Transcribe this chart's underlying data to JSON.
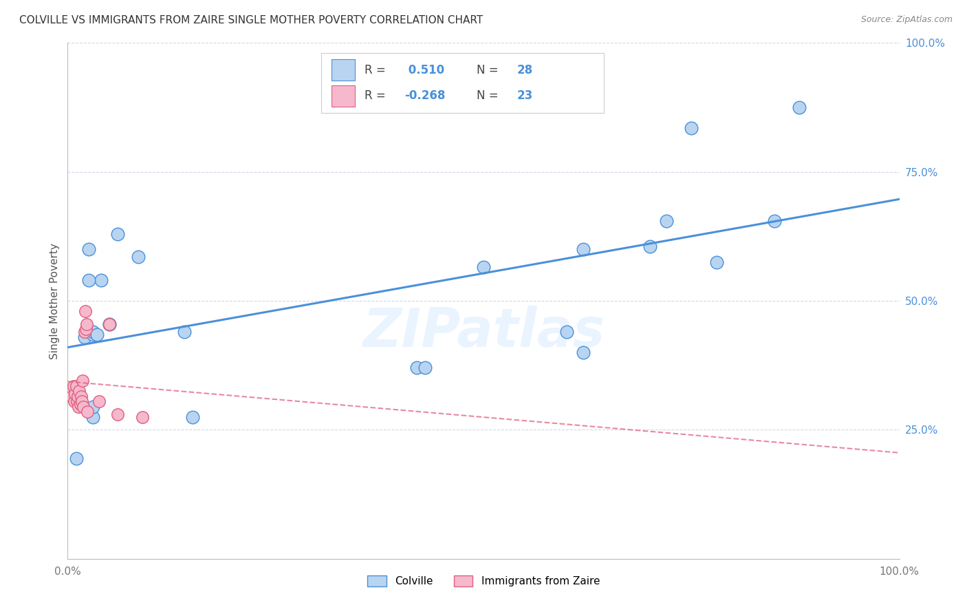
{
  "title": "COLVILLE VS IMMIGRANTS FROM ZAIRE SINGLE MOTHER POVERTY CORRELATION CHART",
  "source": "Source: ZipAtlas.com",
  "ylabel": "Single Mother Poverty",
  "xlim": [
    0,
    1.0
  ],
  "ylim": [
    0,
    1.0
  ],
  "legend_label1": "Colville",
  "legend_label2": "Immigrants from Zaire",
  "R1": 0.51,
  "N1": 28,
  "R2": -0.268,
  "N2": 23,
  "color_blue": "#b8d4f0",
  "color_blue_line": "#4a90d9",
  "color_pink": "#f5b8cc",
  "color_pink_line": "#e06080",
  "colville_x": [
    0.01,
    0.02,
    0.025,
    0.03,
    0.03,
    0.035,
    0.04,
    0.05,
    0.05,
    0.06,
    0.085,
    0.14,
    0.15,
    0.42,
    0.43,
    0.5,
    0.6,
    0.62,
    0.7,
    0.72,
    0.75,
    0.78,
    0.85,
    0.88,
    0.03,
    0.025,
    0.62,
    0.03
  ],
  "colville_y": [
    0.195,
    0.43,
    0.6,
    0.435,
    0.44,
    0.435,
    0.54,
    0.455,
    0.455,
    0.63,
    0.585,
    0.44,
    0.275,
    0.37,
    0.37,
    0.565,
    0.44,
    0.6,
    0.605,
    0.655,
    0.835,
    0.575,
    0.655,
    0.875,
    0.275,
    0.54,
    0.4,
    0.295
  ],
  "zaire_x": [
    0.005,
    0.007,
    0.008,
    0.009,
    0.01,
    0.011,
    0.012,
    0.013,
    0.014,
    0.015,
    0.016,
    0.017,
    0.018,
    0.019,
    0.02,
    0.021,
    0.022,
    0.023,
    0.024,
    0.038,
    0.05,
    0.06,
    0.09
  ],
  "zaire_y": [
    0.315,
    0.335,
    0.305,
    0.32,
    0.335,
    0.305,
    0.315,
    0.295,
    0.325,
    0.3,
    0.315,
    0.305,
    0.345,
    0.295,
    0.44,
    0.48,
    0.445,
    0.455,
    0.285,
    0.305,
    0.455,
    0.28,
    0.275
  ],
  "watermark": "ZIPatlas",
  "background_color": "#ffffff",
  "grid_color": "#d0d8e8"
}
